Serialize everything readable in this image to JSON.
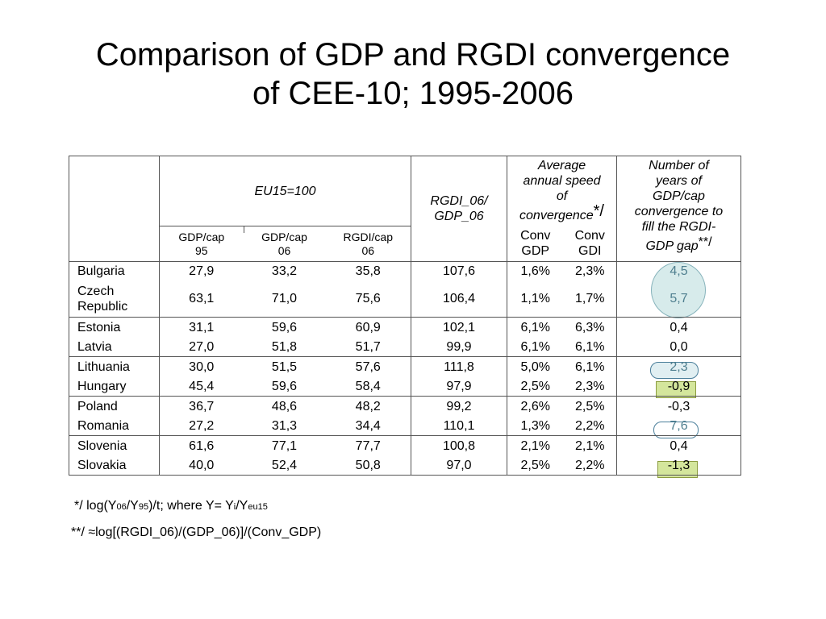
{
  "title": {
    "line1": "Comparison of GDP and RGDI convergence",
    "line2": "of CEE-10; 1995-2006"
  },
  "table": {
    "group_header": "EU15=100",
    "ratio_header_1": "RGDI_06/",
    "ratio_header_2": "GDP_06",
    "speed_header": [
      "Average",
      "annual speed",
      "of",
      "convergence"
    ],
    "speed_mark": "*/",
    "years_header": [
      "Number of",
      "years of",
      "GDP/cap",
      "convergence to",
      "fill the RGDI-",
      "GDP gap"
    ],
    "years_mark": "**/",
    "sub_headers": {
      "gdp95": [
        "GDP/cap",
        "95"
      ],
      "gdp06": [
        "GDP/cap",
        "06"
      ],
      "rgdi06": [
        "RGDI/cap",
        "06"
      ],
      "conv_gdp": [
        "Conv",
        "GDP"
      ],
      "conv_gdi": [
        "Conv",
        "GDI"
      ]
    },
    "groups": [
      {
        "rows": [
          {
            "country": "Bulgaria",
            "gdp95": "27,9",
            "gdp06": "33,2",
            "rgdi06": "35,8",
            "ratio": "107,6",
            "conv_gdp": "1,6%",
            "conv_gdi": "2,3%",
            "years": "4,5"
          },
          {
            "country": "Czech Republic",
            "gdp95": "63,1",
            "gdp06": "71,0",
            "rgdi06": "75,6",
            "ratio": "106,4",
            "conv_gdp": "1,1%",
            "conv_gdi": "1,7%",
            "years": "5,7"
          }
        ]
      },
      {
        "rows": [
          {
            "country": "Estonia",
            "gdp95": "31,1",
            "gdp06": "59,6",
            "rgdi06": "60,9",
            "ratio": "102,1",
            "conv_gdp": "6,1%",
            "conv_gdi": "6,3%",
            "years": "0,4"
          },
          {
            "country": "Latvia",
            "gdp95": "27,0",
            "gdp06": "51,8",
            "rgdi06": "51,7",
            "ratio": "99,9",
            "conv_gdp": "6,1%",
            "conv_gdi": "6,1%",
            "years": "0,0"
          }
        ]
      },
      {
        "rows": [
          {
            "country": "Lithuania",
            "gdp95": "30,0",
            "gdp06": "51,5",
            "rgdi06": "57,6",
            "ratio": "111,8",
            "conv_gdp": "5,0%",
            "conv_gdi": "6,1%",
            "years": "2,3"
          },
          {
            "country": "Hungary",
            "gdp95": "45,4",
            "gdp06": "59,6",
            "rgdi06": "58,4",
            "ratio": "97,9",
            "conv_gdp": "2,5%",
            "conv_gdi": "2,3%",
            "years": "-0,9"
          }
        ]
      },
      {
        "rows": [
          {
            "country": "Poland",
            "gdp95": "36,7",
            "gdp06": "48,6",
            "rgdi06": "48,2",
            "ratio": "99,2",
            "conv_gdp": "2,6%",
            "conv_gdi": "2,5%",
            "years": "-0,3"
          },
          {
            "country": "Romania",
            "gdp95": "27,2",
            "gdp06": "31,3",
            "rgdi06": "34,4",
            "ratio": "110,1",
            "conv_gdp": "1,3%",
            "conv_gdi": "2,2%",
            "years": "7,6"
          }
        ]
      },
      {
        "rows": [
          {
            "country": "Slovenia",
            "gdp95": "61,6",
            "gdp06": "77,1",
            "rgdi06": "77,7",
            "ratio": "100,8",
            "conv_gdp": "2,1%",
            "conv_gdi": "2,1%",
            "years": "0,4"
          },
          {
            "country": "Slovakia",
            "gdp95": "40,0",
            "gdp06": "52,4",
            "rgdi06": "50,8",
            "ratio": "97,0",
            "conv_gdp": "2,5%",
            "conv_gdi": "2,2%",
            "years": "-1,3"
          }
        ]
      }
    ]
  },
  "footnotes": {
    "fn1": {
      "a": "*/ log(Y",
      "b": "06",
      "c": "/Y",
      "d": "95",
      "e": ")/t; where Y= Y",
      "f": "i",
      "g": "/Y",
      "h": "eu15"
    },
    "fn2": "**/ ≈log[(RGDI_06)/(GDP_06)]/(Conv_GDP)"
  },
  "highlight_colors": {
    "teal_oval": "#d7ebeb",
    "green_box": "#d4e69c",
    "outline_blue": "#4a7e9a"
  }
}
